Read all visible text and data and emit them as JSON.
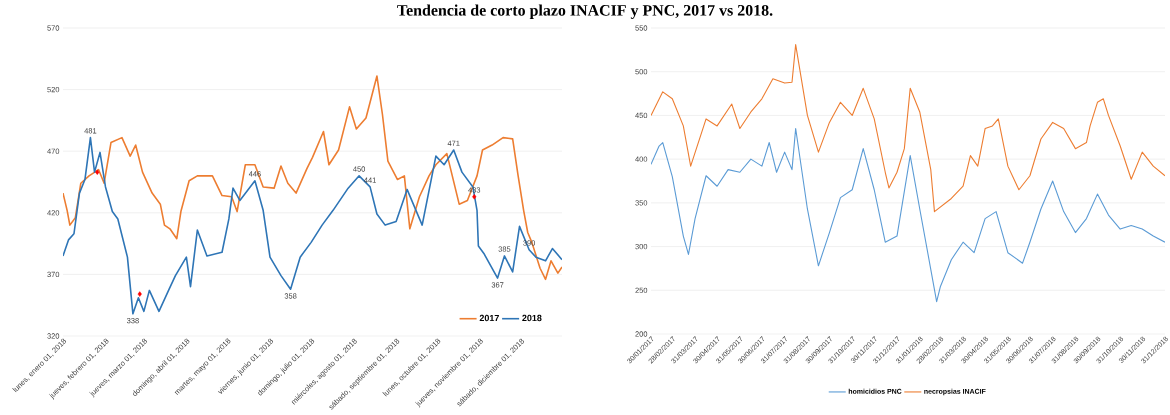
{
  "chart_data": [
    {
      "type": "line",
      "title": "Tendencia de corto plazo INACIF y PNC, 2017 vs 2018.",
      "xlim": [
        "2018-01-01",
        "2018-12-31"
      ],
      "xticks": [
        {
          "value": "2018-01-01",
          "label": "lunes, enero 01, 2018"
        },
        {
          "value": "2018-02-01",
          "label": "jueves, febrero 01, 2018"
        },
        {
          "value": "2018-03-01",
          "label": "jueves, marzo 01, 2018"
        },
        {
          "value": "2018-04-01",
          "label": "domingo, abril 01, 2018"
        },
        {
          "value": "2018-05-01",
          "label": "martes, mayo 01, 2018"
        },
        {
          "value": "2018-06-01",
          "label": "viernes, junio 01, 2018"
        },
        {
          "value": "2018-07-01",
          "label": "domingo, julio 01, 2018"
        },
        {
          "value": "2018-08-01",
          "label": "miércoles, agosto 01, 2018"
        },
        {
          "value": "2018-09-01",
          "label": "sábado, septiembre 01, 2018"
        },
        {
          "value": "2018-10-01",
          "label": "lunes, octubre 01, 2018"
        },
        {
          "value": "2018-11-01",
          "label": "jueves, noviembre 01, 2018"
        },
        {
          "value": "2018-12-01",
          "label": "sábado, diciembre 01, 2018"
        }
      ],
      "ylim": [
        320,
        570
      ],
      "yticks": [
        320,
        370,
        420,
        470,
        520,
        570
      ],
      "grid": "y",
      "legend": "bottom right",
      "series": [
        {
          "name": "2017",
          "color": "#ed7d31",
          "x": [
            "2018-01-01",
            "2018-01-04",
            "2018-01-06",
            "2018-01-10",
            "2018-01-14",
            "2018-01-20",
            "2018-01-27",
            "2018-01-31",
            "2018-02-05",
            "2018-02-13",
            "2018-02-19",
            "2018-02-23",
            "2018-02-28",
            "2018-03-07",
            "2018-03-13",
            "2018-03-16",
            "2018-03-20",
            "2018-03-25",
            "2018-03-28",
            "2018-04-03",
            "2018-04-09",
            "2018-04-20",
            "2018-04-27",
            "2018-05-04",
            "2018-05-08",
            "2018-05-14",
            "2018-05-21",
            "2018-05-27",
            "2018-06-04",
            "2018-06-09",
            "2018-06-14",
            "2018-06-20",
            "2018-06-28",
            "2018-07-02",
            "2018-07-10",
            "2018-07-14",
            "2018-07-21",
            "2018-07-29",
            "2018-08-03",
            "2018-08-10",
            "2018-08-18",
            "2018-08-22",
            "2018-08-26",
            "2018-09-02",
            "2018-09-07",
            "2018-09-11",
            "2018-09-18",
            "2018-09-25",
            "2018-09-30",
            "2018-10-08",
            "2018-10-17",
            "2018-10-23",
            "2018-10-30",
            "2018-11-03",
            "2018-11-10",
            "2018-11-18",
            "2018-11-25",
            "2018-11-29",
            "2018-12-03",
            "2018-12-06",
            "2018-12-09",
            "2018-12-15",
            "2018-12-19",
            "2018-12-23",
            "2018-12-28",
            "2018-12-31"
          ],
          "values": [
            436,
            422,
            410,
            416,
            444,
            450,
            455,
            444,
            477,
            481,
            466,
            475,
            453,
            436,
            427,
            410,
            407,
            399,
            421,
            446,
            450,
            450,
            434,
            433,
            421,
            459,
            459,
            441,
            440,
            458,
            444,
            436,
            456,
            465,
            486,
            459,
            471,
            506,
            488,
            497,
            531,
            500,
            462,
            447,
            450,
            407,
            433,
            450,
            459,
            468,
            427,
            430,
            450,
            471,
            475,
            481,
            480,
            450,
            422,
            404,
            396,
            375,
            366,
            381,
            371,
            376
          ]
        },
        {
          "name": "2018",
          "color": "#2e75b6",
          "x": [
            "2018-01-01",
            "2018-01-05",
            "2018-01-09",
            "2018-01-13",
            "2018-01-17",
            "2018-01-21",
            "2018-01-24",
            "2018-01-28",
            "2018-02-01",
            "2018-02-06",
            "2018-02-10",
            "2018-02-17",
            "2018-02-21",
            "2018-02-25",
            "2018-03-01",
            "2018-03-05",
            "2018-03-12",
            "2018-03-19",
            "2018-03-24",
            "2018-04-01",
            "2018-04-04",
            "2018-04-09",
            "2018-04-16",
            "2018-04-27",
            "2018-05-02",
            "2018-05-05",
            "2018-05-10",
            "2018-05-21",
            "2018-05-27",
            "2018-06-01",
            "2018-06-09",
            "2018-06-16",
            "2018-06-23",
            "2018-07-01",
            "2018-07-09",
            "2018-07-17",
            "2018-07-28",
            "2018-08-05",
            "2018-08-13",
            "2018-08-18",
            "2018-08-24",
            "2018-09-01",
            "2018-09-09",
            "2018-09-20",
            "2018-09-30",
            "2018-10-06",
            "2018-10-13",
            "2018-10-19",
            "2018-10-27",
            "2018-10-30",
            "2018-10-31",
            "2018-11-04",
            "2018-11-14",
            "2018-11-19",
            "2018-11-25",
            "2018-11-30",
            "2018-12-07",
            "2018-12-12",
            "2018-12-19",
            "2018-12-24",
            "2018-12-31"
          ],
          "values": [
            385,
            398,
            403,
            436,
            447,
            481,
            453,
            469,
            441,
            421,
            415,
            384,
            338,
            351,
            340,
            357,
            340,
            357,
            369,
            384,
            360,
            406,
            385,
            388,
            415,
            440,
            430,
            446,
            422,
            384,
            369,
            358,
            384,
            396,
            410,
            422,
            440,
            450,
            441,
            419,
            410,
            413,
            439,
            410,
            466,
            459,
            471,
            453,
            441,
            422,
            393,
            387,
            367,
            385,
            372,
            409,
            390,
            384,
            381,
            391,
            382
          ]
        },
        {
          "type": "scatter",
          "marker": "diamond",
          "color": "#ff0000",
          "x": [
            "2018-01-26",
            "2018-02-26",
            "2018-10-28"
          ],
          "values": [
            453,
            354,
            433
          ]
        }
      ],
      "annotations": [
        {
          "text": "481",
          "x": "2018-01-21",
          "y": 481
        },
        {
          "text": "338",
          "x": "2018-02-21",
          "y": 338
        },
        {
          "text": "446",
          "x": "2018-05-21",
          "y": 446
        },
        {
          "text": "358",
          "x": "2018-06-16",
          "y": 358
        },
        {
          "text": "450",
          "x": "2018-08-05",
          "y": 450
        },
        {
          "text": "441",
          "x": "2018-08-13",
          "y": 441
        },
        {
          "text": "471",
          "x": "2018-10-13",
          "y": 471
        },
        {
          "text": "433",
          "x": "2018-10-28",
          "y": 433
        },
        {
          "text": "367",
          "x": "2018-11-14",
          "y": 367
        },
        {
          "text": "385",
          "x": "2018-11-19",
          "y": 385
        },
        {
          "text": "390",
          "x": "2018-12-07",
          "y": 390
        }
      ]
    },
    {
      "type": "line",
      "xlim": [
        "2017-01-30",
        "2018-12-31"
      ],
      "xticks": [
        {
          "value": "2017-01-30",
          "label": "30/01/2017"
        },
        {
          "value": "2017-02-28",
          "label": "28/02/2017"
        },
        {
          "value": "2017-03-31",
          "label": "31/03/2017"
        },
        {
          "value": "2017-04-30",
          "label": "30/04/2017"
        },
        {
          "value": "2017-05-31",
          "label": "31/05/2017"
        },
        {
          "value": "2017-06-30",
          "label": "30/06/2017"
        },
        {
          "value": "2017-07-31",
          "label": "31/07/2017"
        },
        {
          "value": "2017-08-31",
          "label": "31/08/2017"
        },
        {
          "value": "2017-09-30",
          "label": "30/09/2017"
        },
        {
          "value": "2017-10-31",
          "label": "31/10/2017"
        },
        {
          "value": "2017-11-30",
          "label": "30/11/2017"
        },
        {
          "value": "2017-12-31",
          "label": "31/12/2017"
        },
        {
          "value": "2018-01-31",
          "label": "31/01/2018"
        },
        {
          "value": "2018-02-28",
          "label": "28/02/2018"
        },
        {
          "value": "2018-03-31",
          "label": "31/03/2018"
        },
        {
          "value": "2018-04-30",
          "label": "30/04/2018"
        },
        {
          "value": "2018-05-31",
          "label": "31/05/2018"
        },
        {
          "value": "2018-06-30",
          "label": "30/06/2018"
        },
        {
          "value": "2018-07-31",
          "label": "31/07/2018"
        },
        {
          "value": "2018-08-31",
          "label": "31/08/2018"
        },
        {
          "value": "2018-09-30",
          "label": "30/09/2018"
        },
        {
          "value": "2018-10-31",
          "label": "31/10/2018"
        },
        {
          "value": "2018-11-30",
          "label": "30/11/2018"
        },
        {
          "value": "2018-12-31",
          "label": "31/12/2018"
        }
      ],
      "ylim": [
        200,
        550
      ],
      "yticks": [
        200,
        250,
        300,
        350,
        400,
        450,
        500,
        550
      ],
      "grid": "y",
      "legend": "bottom",
      "series": [
        {
          "name": "homicidios PNC",
          "color": "#5b9bd5",
          "x": [
            "2017-01-30",
            "2017-02-10",
            "2017-02-15",
            "2017-02-28",
            "2017-03-15",
            "2017-03-22",
            "2017-03-31",
            "2017-04-15",
            "2017-04-30",
            "2017-05-15",
            "2017-05-31",
            "2017-06-15",
            "2017-06-30",
            "2017-07-10",
            "2017-07-20",
            "2017-07-31",
            "2017-08-10",
            "2017-08-15",
            "2017-08-31",
            "2017-09-15",
            "2017-09-30",
            "2017-10-15",
            "2017-10-31",
            "2017-11-15",
            "2017-11-30",
            "2017-12-15",
            "2017-12-31",
            "2018-01-18",
            "2018-01-31",
            "2018-02-15",
            "2018-02-23",
            "2018-02-28",
            "2018-03-15",
            "2018-03-31",
            "2018-04-15",
            "2018-04-30",
            "2018-05-15",
            "2018-05-31",
            "2018-06-20",
            "2018-06-30",
            "2018-07-15",
            "2018-07-31",
            "2018-08-15",
            "2018-08-31",
            "2018-09-15",
            "2018-09-30",
            "2018-10-15",
            "2018-10-31",
            "2018-11-15",
            "2018-11-30",
            "2018-12-15",
            "2018-12-31"
          ],
          "values": [
            394,
            415,
            419,
            380,
            312,
            291,
            332,
            381,
            369,
            388,
            385,
            400,
            392,
            419,
            385,
            408,
            388,
            435,
            343,
            278,
            316,
            356,
            365,
            412,
            365,
            305,
            312,
            404,
            343,
            274,
            237,
            254,
            285,
            305,
            293,
            332,
            340,
            293,
            281,
            305,
            343,
            375,
            340,
            316,
            332,
            360,
            336,
            320,
            324,
            320,
            312,
            305
          ]
        },
        {
          "name": "necropsias INACIF",
          "color": "#ed7d31",
          "x": [
            "2017-01-30",
            "2017-02-15",
            "2017-02-28",
            "2017-03-15",
            "2017-03-25",
            "2017-04-15",
            "2017-04-30",
            "2017-05-20",
            "2017-05-31",
            "2017-06-15",
            "2017-06-30",
            "2017-07-15",
            "2017-07-31",
            "2017-08-10",
            "2017-08-15",
            "2017-08-31",
            "2017-09-15",
            "2017-09-30",
            "2017-10-15",
            "2017-10-31",
            "2017-11-15",
            "2017-11-30",
            "2017-12-15",
            "2017-12-20",
            "2017-12-31",
            "2018-01-10",
            "2018-01-18",
            "2018-01-31",
            "2018-02-15",
            "2018-02-20",
            "2018-03-15",
            "2018-03-31",
            "2018-04-10",
            "2018-04-20",
            "2018-04-30",
            "2018-05-10",
            "2018-05-18",
            "2018-05-31",
            "2018-06-15",
            "2018-06-30",
            "2018-07-15",
            "2018-07-31",
            "2018-08-15",
            "2018-08-31",
            "2018-09-15",
            "2018-09-20",
            "2018-09-30",
            "2018-10-08",
            "2018-10-15",
            "2018-10-31",
            "2018-11-15",
            "2018-11-30",
            "2018-12-15",
            "2018-12-31"
          ],
          "values": [
            450,
            477,
            469,
            438,
            392,
            446,
            438,
            463,
            435,
            454,
            469,
            492,
            487,
            488,
            531,
            450,
            408,
            442,
            465,
            450,
            481,
            446,
            385,
            367,
            385,
            412,
            481,
            454,
            388,
            340,
            355,
            369,
            404,
            392,
            435,
            438,
            446,
            392,
            365,
            381,
            423,
            442,
            435,
            412,
            419,
            438,
            465,
            469,
            450,
            415,
            377,
            408,
            392,
            381
          ]
        }
      ]
    }
  ]
}
